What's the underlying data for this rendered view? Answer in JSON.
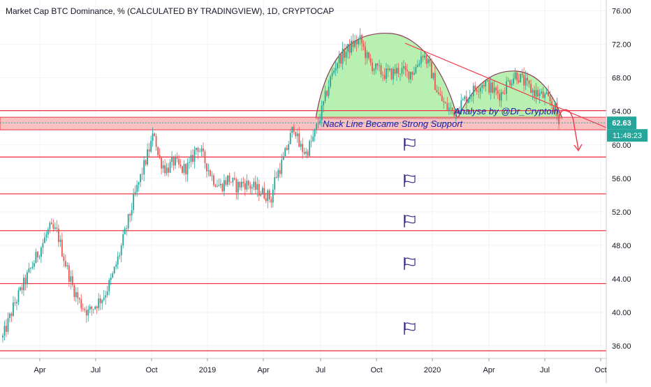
{
  "chart_data": {
    "type": "candlestick",
    "title": "Market Cap BTC Dominance, % (CALCULATED BY TRADINGVIEW), 1D, CRYPTOCAP",
    "x_ticks": [
      "Apr",
      "Jul",
      "Oct",
      "2019",
      "Apr",
      "Jul",
      "Oct",
      "2020",
      "Apr",
      "Jul",
      "Oct"
    ],
    "y_ticks": [
      "76.00",
      "72.00",
      "68.00",
      "64.00",
      "60.00",
      "56.00",
      "52.00",
      "48.00",
      "44.00",
      "40.00",
      "36.00"
    ],
    "ylim": [
      34.5,
      77.3
    ],
    "grid": true,
    "series": [
      {
        "points": [
          [
            0,
            37
          ],
          [
            3,
            41
          ],
          [
            6,
            44
          ],
          [
            9,
            47
          ],
          [
            12,
            50
          ],
          [
            14,
            49.5
          ],
          [
            16,
            46
          ],
          [
            18,
            43
          ],
          [
            20,
            41
          ],
          [
            22,
            40
          ],
          [
            24,
            41
          ],
          [
            26,
            42
          ],
          [
            28,
            44
          ],
          [
            30,
            47
          ],
          [
            32,
            50.5
          ],
          [
            34,
            54
          ],
          [
            36,
            57
          ],
          [
            38,
            60
          ],
          [
            39,
            61.5
          ],
          [
            40,
            58.5
          ],
          [
            42,
            57
          ],
          [
            44,
            58
          ],
          [
            46,
            57
          ],
          [
            48,
            57.5
          ],
          [
            50,
            60
          ],
          [
            52,
            58
          ],
          [
            54,
            56
          ],
          [
            56,
            55
          ],
          [
            58,
            56
          ],
          [
            60,
            55
          ],
          [
            62,
            55.5
          ],
          [
            64,
            55
          ],
          [
            66,
            54.5
          ],
          [
            68,
            54
          ],
          [
            69,
            53.5
          ],
          [
            70,
            56
          ],
          [
            72,
            58
          ],
          [
            74,
            61
          ],
          [
            75,
            62.5
          ],
          [
            76,
            60
          ],
          [
            78,
            59
          ],
          [
            80,
            61
          ],
          [
            82,
            64
          ],
          [
            84,
            67.5
          ],
          [
            86,
            70
          ],
          [
            88,
            71
          ],
          [
            90,
            72
          ],
          [
            92,
            72.5
          ],
          [
            94,
            70
          ],
          [
            96,
            69
          ],
          [
            98,
            68.5
          ],
          [
            100,
            68.5
          ],
          [
            102,
            69
          ],
          [
            104,
            68.5
          ],
          [
            106,
            69
          ],
          [
            108,
            71
          ],
          [
            110,
            69
          ],
          [
            112,
            66
          ],
          [
            114,
            64.5
          ],
          [
            116,
            64
          ],
          [
            118,
            65
          ],
          [
            120,
            66
          ],
          [
            122,
            67
          ],
          [
            124,
            67.5
          ],
          [
            126,
            66.5
          ],
          [
            128,
            66
          ],
          [
            130,
            67.5
          ],
          [
            132,
            68.5
          ],
          [
            134,
            67.5
          ],
          [
            136,
            66.5
          ],
          [
            138,
            66
          ],
          [
            140,
            65.5
          ],
          [
            142,
            64.5
          ],
          [
            143,
            62.5
          ]
        ],
        "color_up": "#26a69a",
        "color_down": "#ef5350"
      }
    ],
    "levels": [
      {
        "value": 64.09,
        "label": "64.09"
      },
      {
        "value": 58.55,
        "label": "58.55"
      },
      {
        "value": 54.15,
        "label": "54.15"
      },
      {
        "value": 49.76,
        "label": "49.76"
      },
      {
        "value": 43.44,
        "label": "43.44"
      },
      {
        "value": 35.41,
        "label": "35.41"
      }
    ],
    "support_zone": {
      "top": 63.3,
      "bottom": 61.8
    },
    "current_price": {
      "value": 62.63,
      "label": "62.63",
      "countdown": "11:48:23"
    },
    "annotations": {
      "neckline_text": "Nack Line Became Strong Support",
      "analyst_text": "Analyse by @Dr_Cryptoin"
    },
    "colors": {
      "level_line": "#f23645",
      "level_label_bg": "#f23645",
      "zone_fill": "#f7a6a8",
      "dome_fill": "#b7f0b0",
      "dome_stroke": "#8e3a5a",
      "price_label_bg": "#26a69a",
      "flag": "#3a2b8c",
      "annotation_text": "#1a1aa6"
    }
  }
}
